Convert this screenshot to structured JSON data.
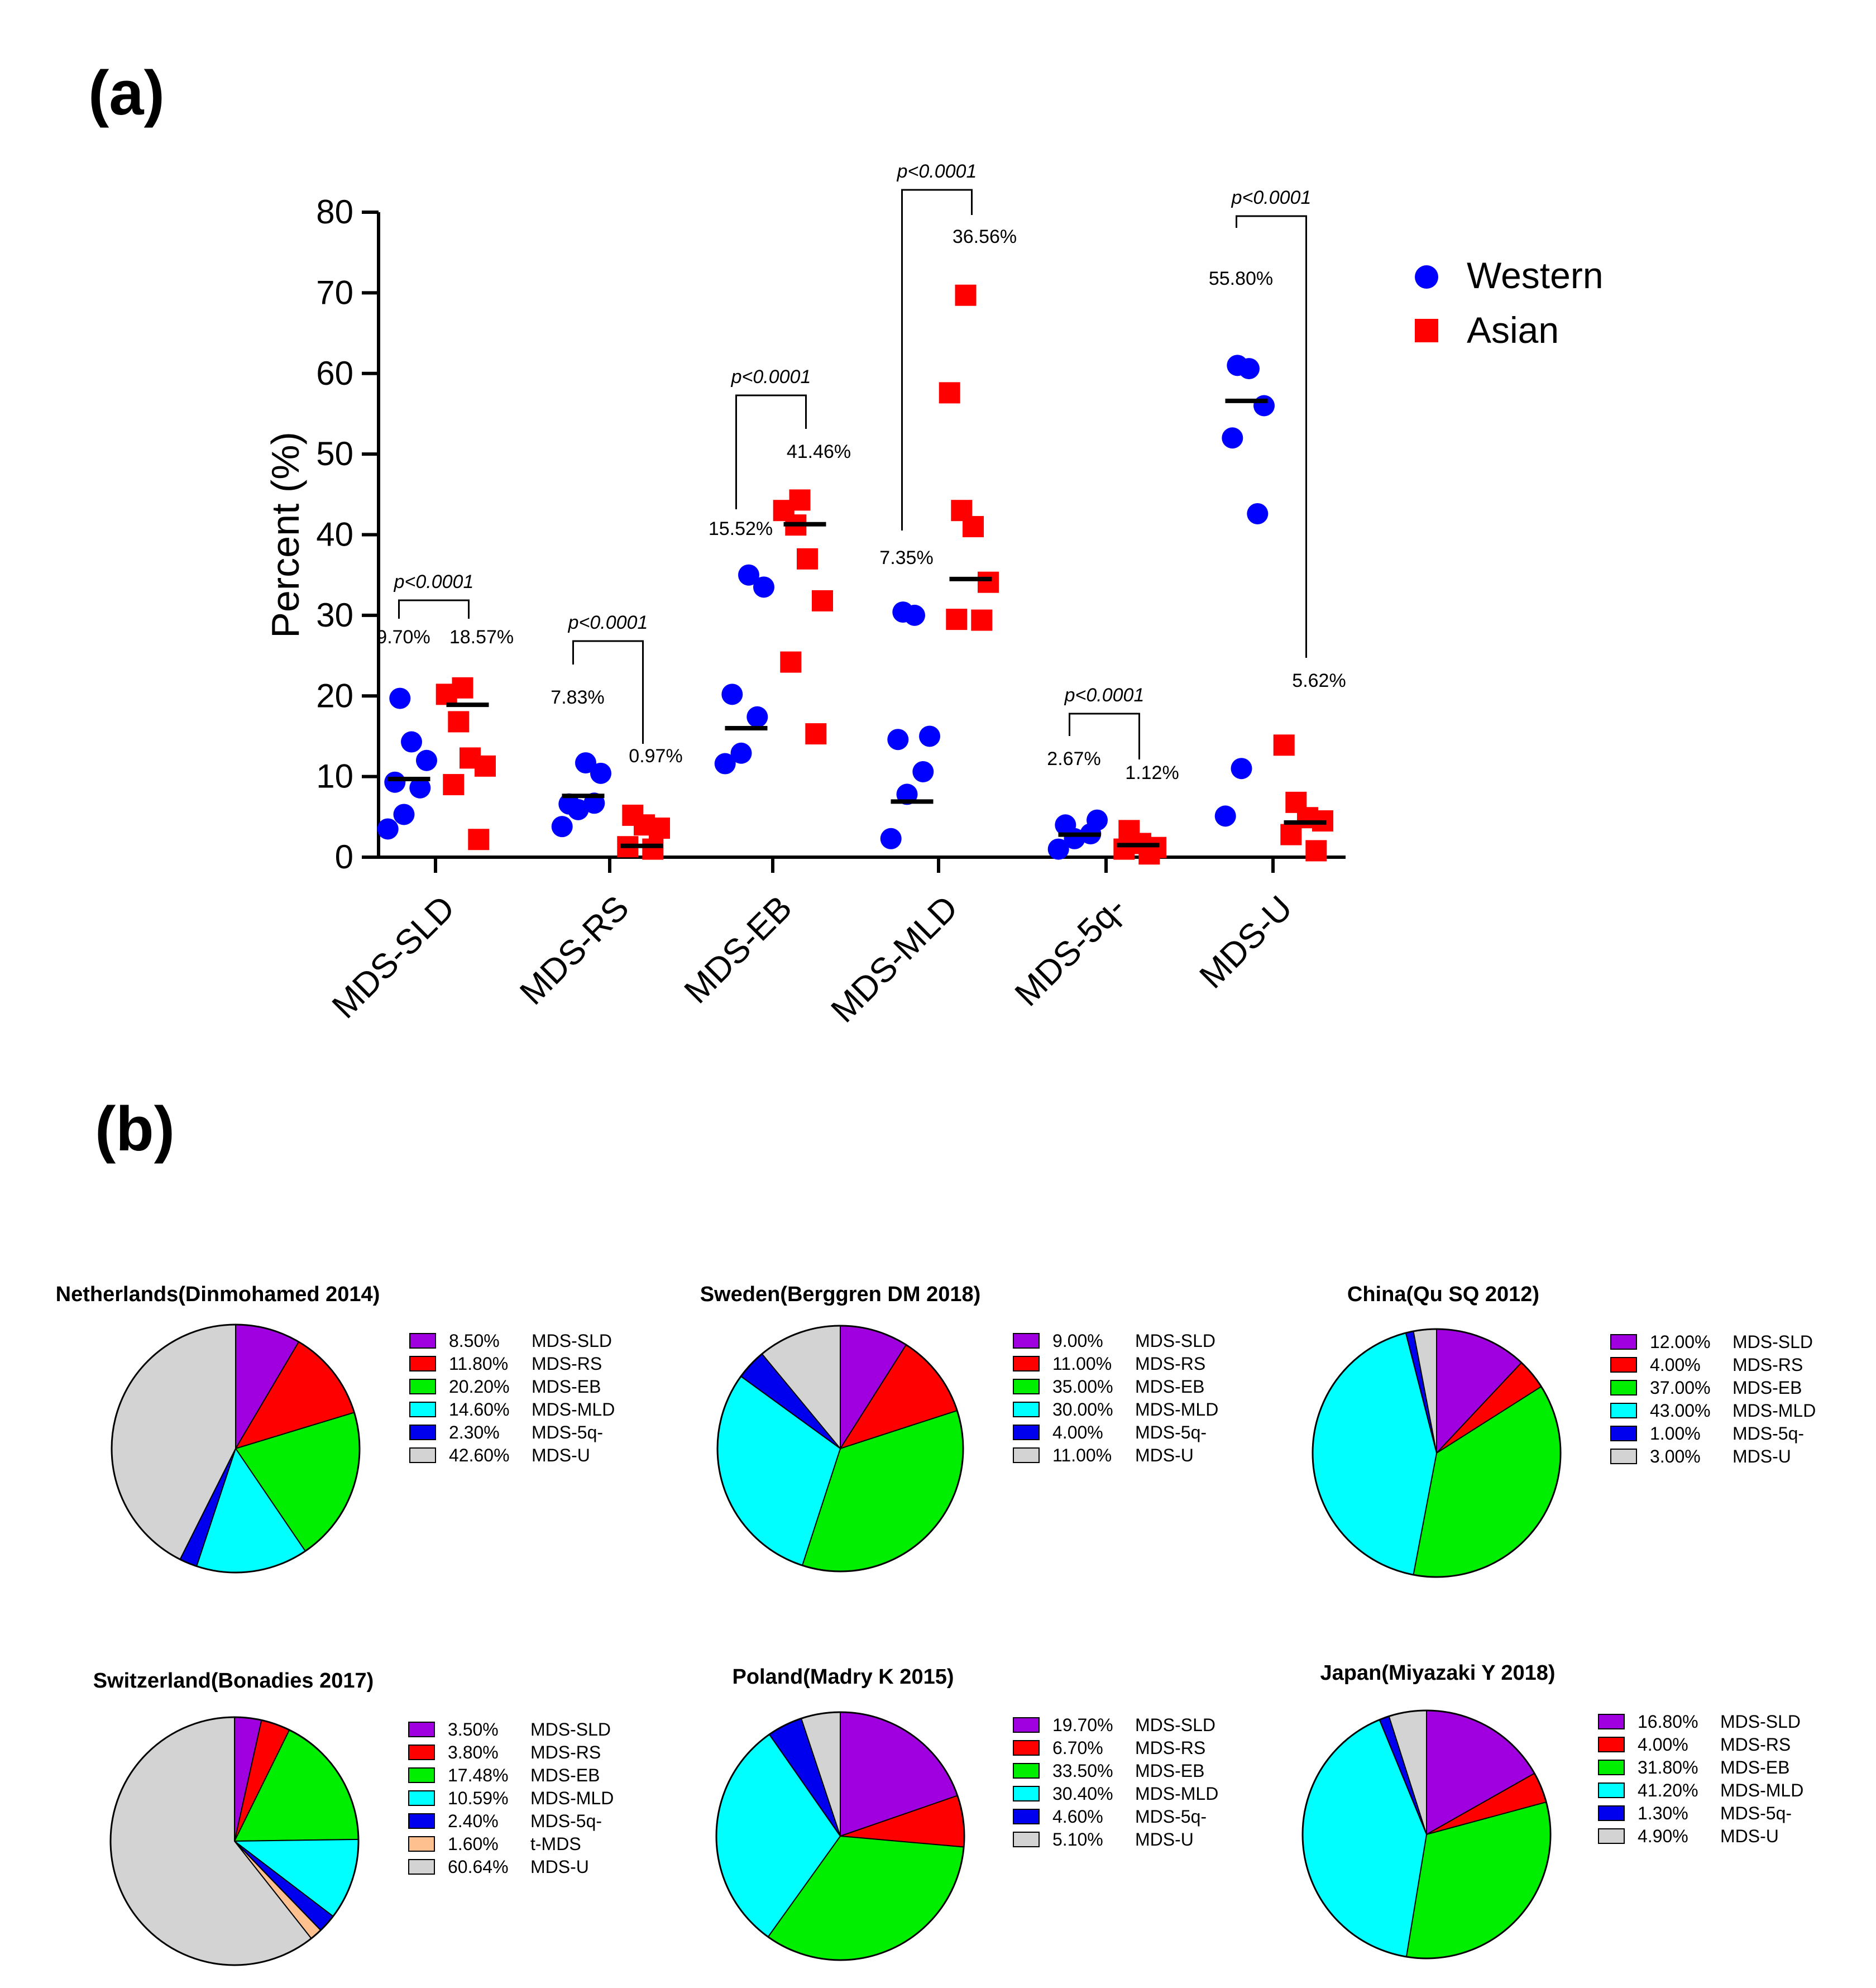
{
  "panel_labels": {
    "a": "(a)",
    "b": "(b)"
  },
  "chart_data": [
    {
      "type": "scatter",
      "title": "",
      "ylabel": "Percent (%)",
      "xlabel": "",
      "ylim": [
        0,
        80
      ],
      "yticks": [
        "0",
        "10",
        "20",
        "30",
        "40",
        "50",
        "60",
        "70",
        "80"
      ],
      "categories": [
        "MDS-SLD",
        "MDS-RS",
        "MDS-EB",
        "MDS-MLD",
        "MDS-5q-",
        "MDS-U"
      ],
      "legend": {
        "position": "top-right",
        "entries": [
          "Western",
          "Asian"
        ]
      },
      "colors": {
        "Western": "#0000ff",
        "Asian": "#ff0000"
      },
      "series": [
        {
          "name": "Western",
          "marker": "circle",
          "points": [
            [
              3.5,
              5.3,
              8.6,
              9.3,
              12,
              14.3,
              19.7
            ],
            [
              3.8,
              5.9,
              6.7,
              6.6,
              10.4,
              11.7
            ],
            [
              11.6,
              12.9,
              17.4,
              20.2,
              33.5,
              35
            ],
            [
              2.3,
              7.8,
              10.6,
              14.6,
              15,
              30,
              30.4
            ],
            [
              1.0,
              2.3,
              2.9,
              4.0,
              4.6
            ],
            [
              5.1,
              11.0,
              42.6,
              52.0,
              56.0,
              60.6,
              61.0
            ]
          ],
          "medians": [
            9.7,
            7.6,
            16.0,
            6.9,
            2.8,
            56.6
          ],
          "labels": [
            "9.70%",
            "7.83%",
            "15.52%",
            "7.35%",
            "2.67%",
            "55.80%"
          ]
        },
        {
          "name": "Asian",
          "marker": "square",
          "points": [
            [
              2.2,
              9.0,
              11.3,
              12.3,
              16.8,
              20.2,
              21.0
            ],
            [
              1.0,
              1.3,
              3.6,
              4.0,
              5.2
            ],
            [
              15.3,
              24.2,
              31.8,
              37.0,
              41.2,
              43.0,
              44.3
            ],
            [
              29.4,
              29.5,
              34.1,
              41.0,
              43.0,
              57.6,
              69.7
            ],
            [
              0.4,
              1.0,
              1.2,
              1.7,
              3.3
            ],
            [
              0.8,
              2.8,
              4.5,
              4.9,
              6.8,
              13.9
            ]
          ],
          "medians": [
            18.9,
            1.4,
            41.3,
            34.5,
            1.5,
            4.3
          ],
          "labels": [
            "18.57%",
            "0.97%",
            "41.46%",
            "36.56%",
            "1.12%",
            "5.62%"
          ]
        }
      ],
      "annotations": {
        "p_values": [
          "p<0.0001",
          "p<0.0001",
          "p<0.0001",
          "p<0.0001",
          "p<0.0001",
          "p<0.0001"
        ]
      }
    },
    {
      "type": "pie",
      "title": "Netherlands(Dinmohamed 2014)",
      "slices": [
        {
          "label": "MDS-SLD",
          "value": 8.5,
          "text": "8.50%",
          "color": "#a000e0"
        },
        {
          "label": "MDS-RS",
          "value": 11.8,
          "text": "11.80%",
          "color": "#ff0000"
        },
        {
          "label": "MDS-EB",
          "value": 20.2,
          "text": "20.20%",
          "color": "#00ee00"
        },
        {
          "label": "MDS-MLD",
          "value": 14.6,
          "text": "14.60%",
          "color": "#00ffff"
        },
        {
          "label": "MDS-5q-",
          "value": 2.3,
          "text": "2.30%",
          "color": "#0000ee"
        },
        {
          "label": "MDS-U",
          "value": 42.6,
          "text": "42.60%",
          "color": "#d3d3d3"
        }
      ]
    },
    {
      "type": "pie",
      "title": "Sweden(Berggren DM 2018)",
      "slices": [
        {
          "label": "MDS-SLD",
          "value": 9.0,
          "text": "9.00%",
          "color": "#a000e0"
        },
        {
          "label": "MDS-RS",
          "value": 11.0,
          "text": "11.00%",
          "color": "#ff0000"
        },
        {
          "label": "MDS-EB",
          "value": 35.0,
          "text": "35.00%",
          "color": "#00ee00"
        },
        {
          "label": "MDS-MLD",
          "value": 30.0,
          "text": "30.00%",
          "color": "#00ffff"
        },
        {
          "label": "MDS-5q-",
          "value": 4.0,
          "text": "4.00%",
          "color": "#0000ee"
        },
        {
          "label": "MDS-U",
          "value": 11.0,
          "text": "11.00%",
          "color": "#d3d3d3"
        }
      ]
    },
    {
      "type": "pie",
      "title": "China(Qu SQ 2012)",
      "slices": [
        {
          "label": "MDS-SLD",
          "value": 12.0,
          "text": "12.00%",
          "color": "#a000e0"
        },
        {
          "label": "MDS-RS",
          "value": 4.0,
          "text": "4.00%",
          "color": "#ff0000"
        },
        {
          "label": "MDS-EB",
          "value": 37.0,
          "text": "37.00%",
          "color": "#00ee00"
        },
        {
          "label": "MDS-MLD",
          "value": 43.0,
          "text": "43.00%",
          "color": "#00ffff"
        },
        {
          "label": "MDS-5q-",
          "value": 1.0,
          "text": "1.00%",
          "color": "#0000ee"
        },
        {
          "label": "MDS-U",
          "value": 3.0,
          "text": "3.00%",
          "color": "#d3d3d3"
        }
      ]
    },
    {
      "type": "pie",
      "title": "Switzerland(Bonadies 2017)",
      "slices": [
        {
          "label": "MDS-SLD",
          "value": 3.5,
          "text": "3.50%",
          "color": "#a000e0"
        },
        {
          "label": "MDS-RS",
          "value": 3.8,
          "text": "3.80%",
          "color": "#ff0000"
        },
        {
          "label": "MDS-EB",
          "value": 17.48,
          "text": "17.48%",
          "color": "#00ee00"
        },
        {
          "label": "MDS-MLD",
          "value": 10.59,
          "text": "10.59%",
          "color": "#00ffff"
        },
        {
          "label": "MDS-5q-",
          "value": 2.4,
          "text": "2.40%",
          "color": "#0000ee"
        },
        {
          "label": "t-MDS",
          "value": 1.6,
          "text": "1.60%",
          "color": "#ffc090"
        },
        {
          "label": "MDS-U",
          "value": 60.64,
          "text": "60.64%",
          "color": "#d3d3d3"
        }
      ]
    },
    {
      "type": "pie",
      "title": "Poland(Madry K 2015)",
      "slices": [
        {
          "label": "MDS-SLD",
          "value": 19.7,
          "text": "19.70%",
          "color": "#a000e0"
        },
        {
          "label": "MDS-RS",
          "value": 6.7,
          "text": "6.70%",
          "color": "#ff0000"
        },
        {
          "label": "MDS-EB",
          "value": 33.5,
          "text": "33.50%",
          "color": "#00ee00"
        },
        {
          "label": "MDS-MLD",
          "value": 30.4,
          "text": "30.40%",
          "color": "#00ffff"
        },
        {
          "label": "MDS-5q-",
          "value": 4.6,
          "text": "4.60%",
          "color": "#0000ee"
        },
        {
          "label": "MDS-U",
          "value": 5.1,
          "text": "5.10%",
          "color": "#d3d3d3"
        }
      ]
    },
    {
      "type": "pie",
      "title": "Japan(Miyazaki Y 2018)",
      "slices": [
        {
          "label": "MDS-SLD",
          "value": 16.8,
          "text": "16.80%",
          "color": "#a000e0"
        },
        {
          "label": "MDS-RS",
          "value": 4.0,
          "text": "4.00%",
          "color": "#ff0000"
        },
        {
          "label": "MDS-EB",
          "value": 31.8,
          "text": "31.80%",
          "color": "#00ee00"
        },
        {
          "label": "MDS-MLD",
          "value": 41.2,
          "text": "41.20%",
          "color": "#00ffff"
        },
        {
          "label": "MDS-5q-",
          "value": 1.3,
          "text": "1.30%",
          "color": "#0000ee"
        },
        {
          "label": "MDS-U",
          "value": 4.9,
          "text": "4.90%",
          "color": "#d3d3d3"
        }
      ]
    }
  ]
}
